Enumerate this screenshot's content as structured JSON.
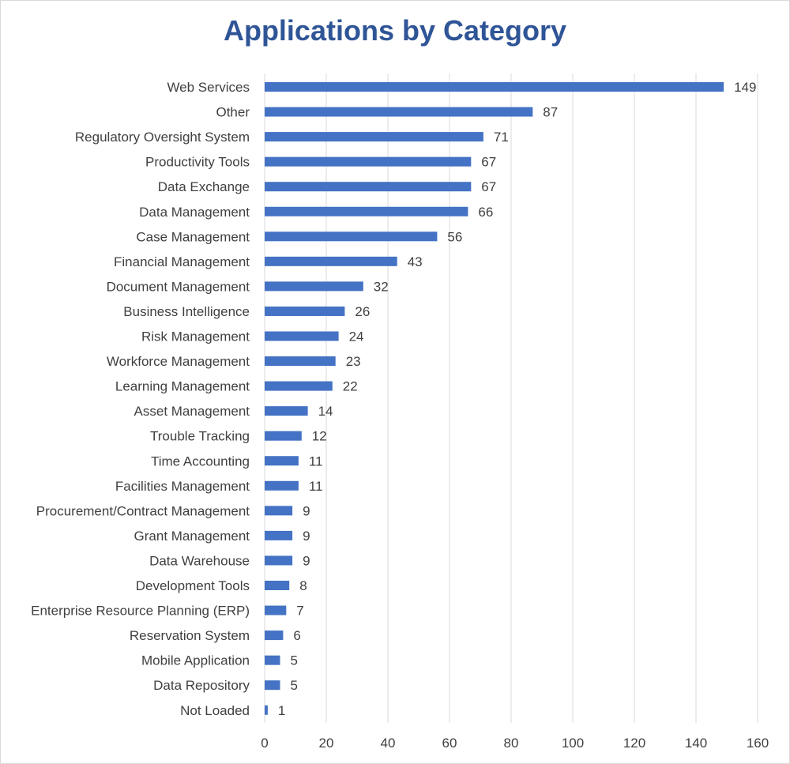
{
  "chart_data": {
    "type": "bar",
    "orientation": "horizontal",
    "title": "Applications by Category",
    "xlabel": "",
    "ylabel": "",
    "xlim": [
      0,
      160
    ],
    "xticks": [
      0,
      20,
      40,
      60,
      80,
      100,
      120,
      140,
      160
    ],
    "grid": true,
    "legend": "none",
    "bar_color": "#4472c4",
    "categories": [
      "Web Services",
      "Other",
      "Regulatory Oversight System",
      "Productivity Tools",
      "Data Exchange",
      "Data Management",
      "Case Management",
      "Financial Management",
      "Document Management",
      "Business Intelligence",
      "Risk Management",
      "Workforce Management",
      "Learning Management",
      "Asset Management",
      "Trouble Tracking",
      "Time Accounting",
      "Facilities Management",
      "Procurement/Contract Management",
      "Grant Management",
      "Data Warehouse",
      "Development Tools",
      "Enterprise Resource Planning (ERP)",
      "Reservation System",
      "Mobile Application",
      "Data Repository",
      "Not Loaded"
    ],
    "values": [
      149,
      87,
      71,
      67,
      67,
      66,
      56,
      43,
      32,
      26,
      24,
      23,
      22,
      14,
      12,
      11,
      11,
      9,
      9,
      9,
      8,
      7,
      6,
      5,
      5,
      1
    ]
  }
}
